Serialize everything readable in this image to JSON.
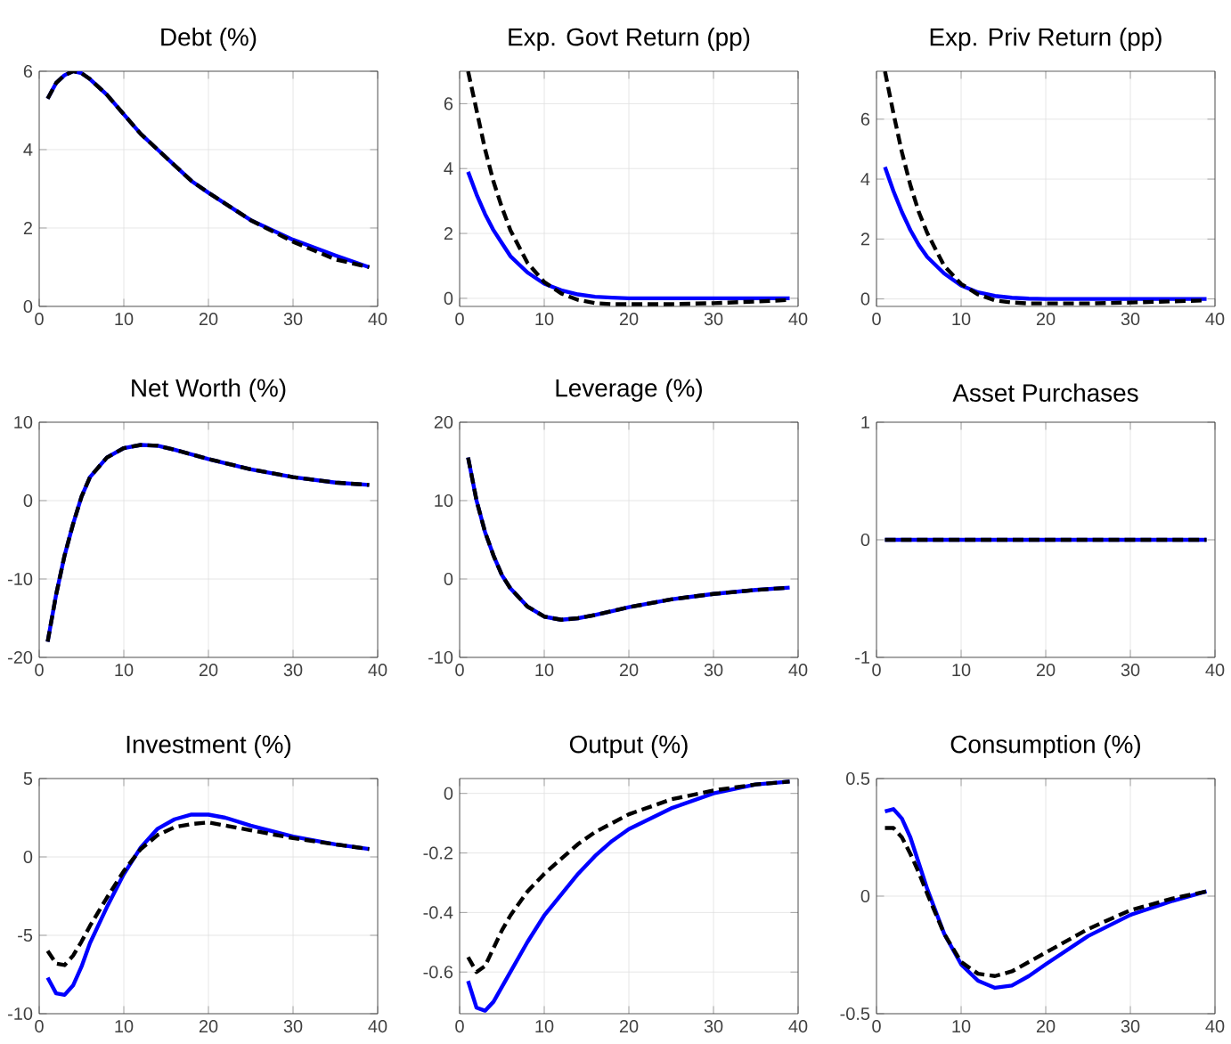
{
  "chart_data": [
    {
      "type": "line",
      "title": "Debt (%)",
      "xlim": [
        0,
        40
      ],
      "xticks": [
        0,
        10,
        20,
        30,
        40
      ],
      "ylim": [
        0,
        6
      ],
      "yticks": [
        0,
        2,
        4,
        6
      ],
      "grid": true,
      "x": [
        1,
        2,
        3,
        4,
        5,
        6,
        8,
        10,
        12,
        14,
        16,
        18,
        20,
        25,
        30,
        35,
        39
      ],
      "series": [
        {
          "color": "#0000ff",
          "line_style": "solid",
          "values": [
            5.3,
            5.7,
            5.9,
            6.0,
            5.95,
            5.8,
            5.4,
            4.9,
            4.4,
            4.0,
            3.6,
            3.2,
            2.9,
            2.2,
            1.7,
            1.3,
            1.0
          ]
        },
        {
          "color": "#000000",
          "line_style": "dashed",
          "values": [
            5.3,
            5.7,
            5.9,
            6.0,
            5.95,
            5.8,
            5.4,
            4.9,
            4.4,
            4.0,
            3.6,
            3.2,
            2.9,
            2.2,
            1.65,
            1.2,
            1.0
          ]
        }
      ]
    },
    {
      "type": "line",
      "title": "Exp. Govt Return (pp)",
      "xlim": [
        0,
        40
      ],
      "xticks": [
        0,
        10,
        20,
        30,
        40
      ],
      "ylim": [
        -0.25,
        7
      ],
      "yticks": [
        0,
        2,
        4,
        6
      ],
      "grid": true,
      "x": [
        1,
        2,
        3,
        4,
        5,
        6,
        8,
        10,
        12,
        14,
        16,
        18,
        20,
        25,
        30,
        35,
        39
      ],
      "series": [
        {
          "color": "#0000ff",
          "line_style": "solid",
          "values": [
            3.9,
            3.2,
            2.6,
            2.1,
            1.7,
            1.3,
            0.8,
            0.45,
            0.25,
            0.12,
            0.05,
            0.02,
            0,
            0,
            0,
            0,
            0
          ]
        },
        {
          "color": "#000000",
          "line_style": "dashed",
          "values": [
            7.0,
            5.8,
            4.6,
            3.6,
            2.8,
            2.1,
            1.1,
            0.5,
            0.15,
            -0.05,
            -0.15,
            -0.18,
            -0.18,
            -0.18,
            -0.15,
            -0.1,
            -0.05
          ]
        }
      ]
    },
    {
      "type": "line",
      "title": "Exp. Priv Return (pp)",
      "xlim": [
        0,
        40
      ],
      "xticks": [
        0,
        10,
        20,
        30,
        40
      ],
      "ylim": [
        -0.25,
        7.6
      ],
      "yticks": [
        0,
        2,
        4,
        6
      ],
      "grid": true,
      "x": [
        1,
        2,
        3,
        4,
        5,
        6,
        8,
        10,
        12,
        14,
        16,
        18,
        20,
        25,
        30,
        35,
        39
      ],
      "series": [
        {
          "color": "#0000ff",
          "line_style": "solid",
          "values": [
            4.4,
            3.6,
            2.9,
            2.3,
            1.8,
            1.4,
            0.85,
            0.45,
            0.22,
            0.1,
            0.04,
            0.01,
            0,
            0,
            0,
            0,
            0
          ]
        },
        {
          "color": "#000000",
          "line_style": "dashed",
          "values": [
            7.6,
            6.2,
            4.9,
            3.8,
            2.9,
            2.2,
            1.1,
            0.5,
            0.15,
            -0.05,
            -0.12,
            -0.15,
            -0.15,
            -0.15,
            -0.12,
            -0.08,
            -0.05
          ]
        }
      ]
    },
    {
      "type": "line",
      "title": "Net Worth (%)",
      "xlim": [
        0,
        40
      ],
      "xticks": [
        0,
        10,
        20,
        30,
        40
      ],
      "ylim": [
        -20,
        10
      ],
      "yticks": [
        -20,
        -10,
        0,
        10
      ],
      "grid": true,
      "x": [
        1,
        2,
        3,
        4,
        5,
        6,
        8,
        10,
        12,
        14,
        16,
        18,
        20,
        25,
        30,
        35,
        39
      ],
      "series": [
        {
          "color": "#0000ff",
          "line_style": "solid",
          "values": [
            -18,
            -12,
            -7,
            -3,
            0.5,
            3,
            5.5,
            6.7,
            7.1,
            7,
            6.5,
            5.9,
            5.3,
            4,
            3,
            2.3,
            2
          ]
        },
        {
          "color": "#000000",
          "line_style": "dashed",
          "values": [
            -18,
            -12,
            -7,
            -3,
            0.5,
            3,
            5.5,
            6.7,
            7.1,
            7,
            6.5,
            5.9,
            5.3,
            4,
            3,
            2.3,
            2
          ]
        }
      ]
    },
    {
      "type": "line",
      "title": "Leverage (%)",
      "xlim": [
        0,
        40
      ],
      "xticks": [
        0,
        10,
        20,
        30,
        40
      ],
      "ylim": [
        -10,
        20
      ],
      "yticks": [
        -10,
        0,
        10,
        20
      ],
      "grid": true,
      "x": [
        1,
        2,
        3,
        4,
        5,
        6,
        8,
        10,
        12,
        14,
        16,
        18,
        20,
        25,
        30,
        35,
        39
      ],
      "series": [
        {
          "color": "#0000ff",
          "line_style": "solid",
          "values": [
            15.5,
            10,
            6,
            3,
            0.5,
            -1.2,
            -3.5,
            -4.8,
            -5.2,
            -5,
            -4.6,
            -4.1,
            -3.6,
            -2.6,
            -1.9,
            -1.4,
            -1.1
          ]
        },
        {
          "color": "#000000",
          "line_style": "dashed",
          "values": [
            15.5,
            10,
            6,
            3,
            0.5,
            -1.2,
            -3.5,
            -4.8,
            -5.2,
            -5,
            -4.6,
            -4.1,
            -3.6,
            -2.6,
            -1.9,
            -1.4,
            -1.1
          ]
        }
      ]
    },
    {
      "type": "line",
      "title": "Asset Purchases",
      "xlim": [
        0,
        40
      ],
      "xticks": [
        0,
        10,
        20,
        30,
        40
      ],
      "ylim": [
        -1,
        1
      ],
      "yticks": [
        -1,
        0,
        1
      ],
      "grid": true,
      "x": [
        1,
        5,
        10,
        15,
        20,
        25,
        30,
        35,
        39
      ],
      "series": [
        {
          "color": "#0000ff",
          "line_style": "solid",
          "values": [
            0,
            0,
            0,
            0,
            0,
            0,
            0,
            0,
            0
          ]
        },
        {
          "color": "#000000",
          "line_style": "dashed",
          "values": [
            0,
            0,
            0,
            0,
            0,
            0,
            0,
            0,
            0
          ]
        }
      ]
    },
    {
      "type": "line",
      "title": "Investment (%)",
      "xlim": [
        0,
        40
      ],
      "xticks": [
        0,
        10,
        20,
        30,
        40
      ],
      "ylim": [
        -10,
        5
      ],
      "yticks": [
        -10,
        -5,
        0,
        5
      ],
      "grid": true,
      "x": [
        1,
        2,
        3,
        4,
        5,
        6,
        8,
        10,
        12,
        14,
        16,
        18,
        20,
        22,
        25,
        30,
        35,
        39
      ],
      "series": [
        {
          "color": "#0000ff",
          "line_style": "solid",
          "values": [
            -7.7,
            -8.7,
            -8.8,
            -8.2,
            -7,
            -5.5,
            -3.2,
            -1.1,
            0.6,
            1.8,
            2.4,
            2.7,
            2.7,
            2.5,
            2,
            1.3,
            0.8,
            0.5
          ]
        },
        {
          "color": "#000000",
          "line_style": "dashed",
          "values": [
            -6,
            -6.8,
            -6.9,
            -6.3,
            -5.4,
            -4.4,
            -2.6,
            -0.9,
            0.5,
            1.4,
            1.9,
            2.1,
            2.2,
            2,
            1.7,
            1.2,
            0.8,
            0.5
          ]
        }
      ]
    },
    {
      "type": "line",
      "title": "Output (%)",
      "xlim": [
        0,
        40
      ],
      "xticks": [
        0,
        10,
        20,
        30,
        40
      ],
      "ylim": [
        -0.74,
        0.05
      ],
      "yticks": [
        -0.6,
        -0.4,
        -0.2,
        0
      ],
      "grid": true,
      "x": [
        1,
        2,
        3,
        4,
        5,
        6,
        8,
        10,
        12,
        14,
        16,
        18,
        20,
        25,
        30,
        35,
        39
      ],
      "series": [
        {
          "color": "#0000ff",
          "line_style": "solid",
          "values": [
            -0.63,
            -0.72,
            -0.73,
            -0.7,
            -0.65,
            -0.6,
            -0.5,
            -0.41,
            -0.34,
            -0.27,
            -0.21,
            -0.16,
            -0.12,
            -0.05,
            0,
            0.03,
            0.04
          ]
        },
        {
          "color": "#000000",
          "line_style": "dashed",
          "values": [
            -0.55,
            -0.6,
            -0.58,
            -0.52,
            -0.46,
            -0.41,
            -0.33,
            -0.27,
            -0.22,
            -0.17,
            -0.13,
            -0.1,
            -0.07,
            -0.02,
            0.01,
            0.03,
            0.04
          ]
        }
      ]
    },
    {
      "type": "line",
      "title": "Consumption (%)",
      "xlim": [
        0,
        40
      ],
      "xticks": [
        0,
        10,
        20,
        30,
        40
      ],
      "ylim": [
        -0.5,
        0.5
      ],
      "yticks": [
        -0.5,
        0,
        0.5
      ],
      "grid": true,
      "x": [
        1,
        2,
        3,
        4,
        5,
        6,
        8,
        10,
        12,
        14,
        16,
        18,
        20,
        25,
        30,
        35,
        39
      ],
      "series": [
        {
          "color": "#0000ff",
          "line_style": "solid",
          "values": [
            0.36,
            0.37,
            0.33,
            0.25,
            0.14,
            0.03,
            -0.16,
            -0.29,
            -0.36,
            -0.39,
            -0.38,
            -0.34,
            -0.29,
            -0.17,
            -0.08,
            -0.02,
            0.02
          ]
        },
        {
          "color": "#000000",
          "line_style": "dashed",
          "values": [
            0.29,
            0.29,
            0.25,
            0.18,
            0.1,
            0.01,
            -0.16,
            -0.28,
            -0.33,
            -0.34,
            -0.32,
            -0.28,
            -0.24,
            -0.14,
            -0.06,
            -0.01,
            0.02
          ]
        }
      ]
    }
  ]
}
